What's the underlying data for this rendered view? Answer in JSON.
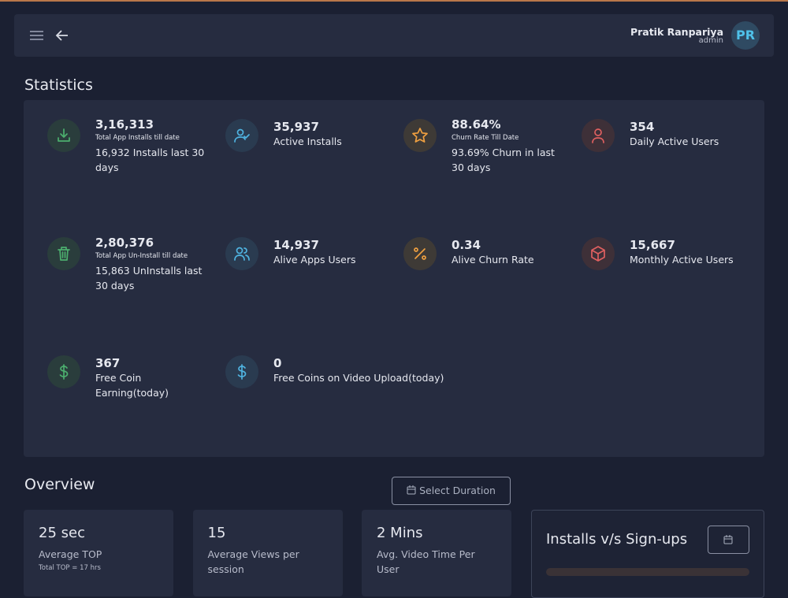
{
  "header": {
    "user_name": "Pratik Ranpariya",
    "role": "admin",
    "initials": "PR"
  },
  "statistics": {
    "title": "Statistics",
    "items": [
      {
        "value": "3,16,313",
        "label": "Total App Installs till date",
        "sub": "16,932 Installs last 30 days"
      },
      {
        "value": "35,937",
        "label": "Active Installs"
      },
      {
        "value": "88.64%",
        "label": "Churn Rate Till Date",
        "sub": "93.69% Churn in last 30 days"
      },
      {
        "value": "354",
        "label": "Daily Active Users"
      },
      {
        "value": "2,80,376",
        "label": "Total App Un-Install till date",
        "sub": "15,863 UnInstalls last 30 days"
      },
      {
        "value": "14,937",
        "label": "Alive Apps Users"
      },
      {
        "value": "0.34",
        "label": "Alive Churn Rate"
      },
      {
        "value": "15,667",
        "label": "Monthly Active Users"
      },
      {
        "value": "367",
        "label": "Free Coin Earning(today)"
      },
      {
        "value": "0",
        "label": "Free Coins on Video Upload(today)"
      }
    ]
  },
  "overview": {
    "title": "Overview",
    "button": "Select Duration",
    "cards": [
      {
        "value": "25 sec",
        "label": "Average TOP",
        "note": "Total TOP = 17 hrs"
      },
      {
        "value": "15",
        "label": "Average Views per session"
      },
      {
        "value": "2 Mins",
        "label": "Avg. Video Time Per User"
      }
    ],
    "chart_title": "Installs v/s Sign-ups"
  }
}
